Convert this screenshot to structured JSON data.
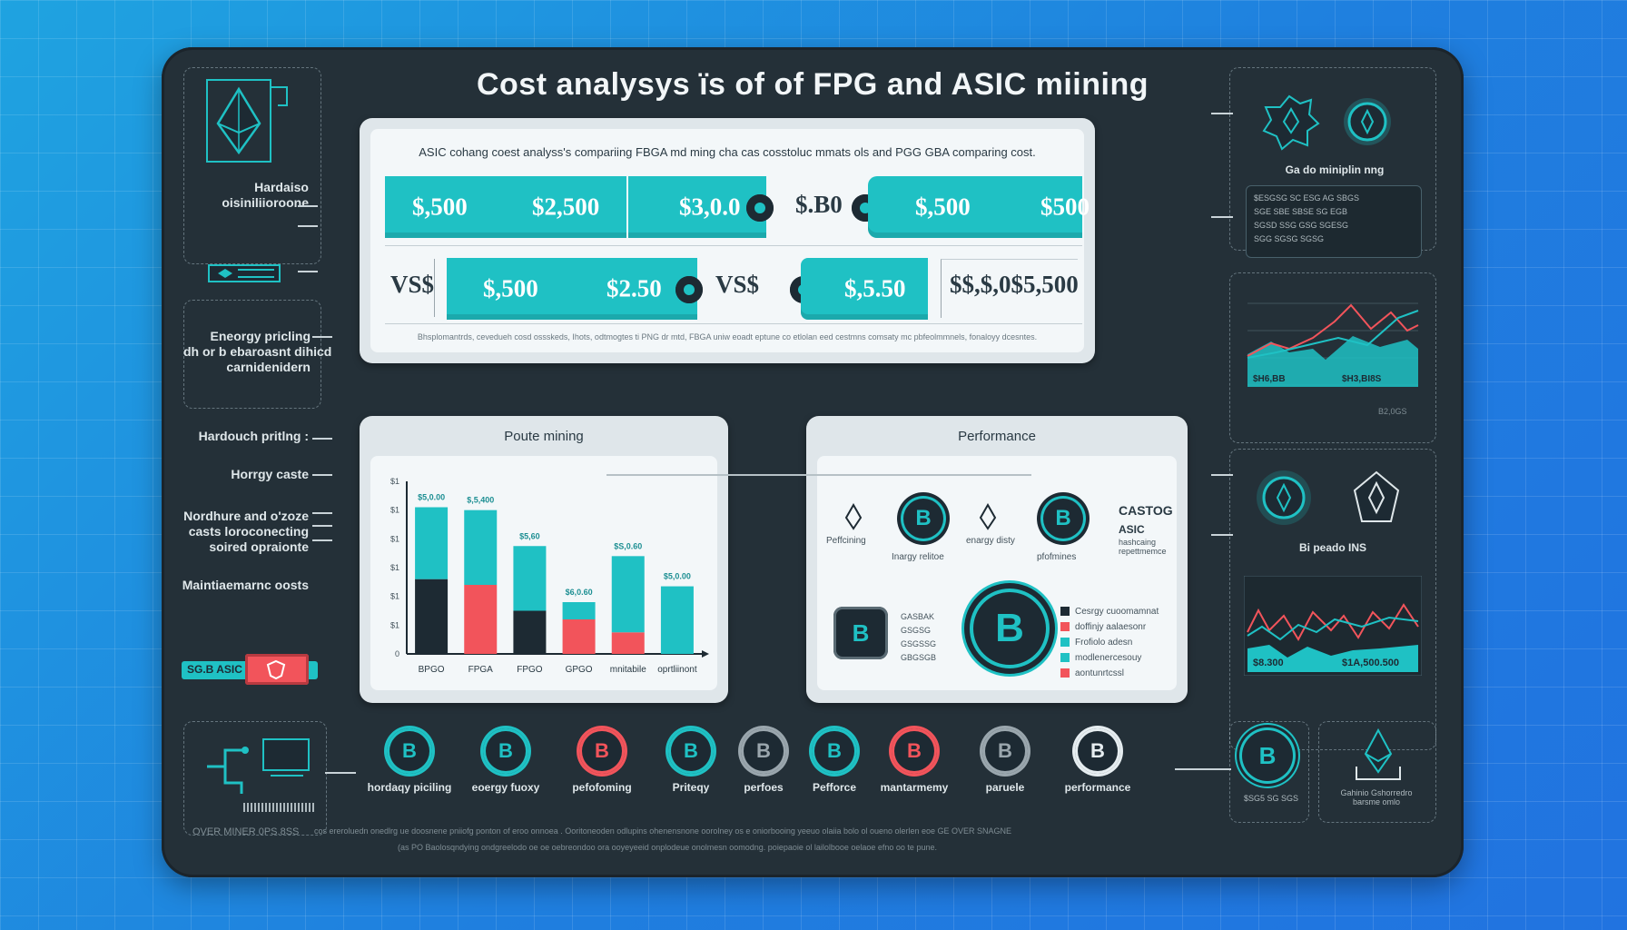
{
  "title": "Cost analysys ïs of  of  FPG and ASIC miining",
  "top_panel": {
    "subtitle": "ASIC cohang coest analyss's compariing FBGA md ming cha cas cosstoluc mmats ols and PGG GBA comparing cost.",
    "row1": {
      "a": "$,500",
      "b": "$2,500",
      "c": "$3,0.0",
      "mid": "$.B0",
      "d": "$,500",
      "e": "$500"
    },
    "row2": {
      "vs1": "VS$",
      "a": "$,500",
      "b": "$2.50",
      "vs2": "VS$",
      "c": "$,5.50",
      "d": "$$,$,0$5,500"
    },
    "note": "Bhsplomantrds, cevedueh cosd ossskeds, Ihots, odtmogtes ti PNG dr mtd, FBGA uniw eoadt eptune co etlolan eed cestmns comsaty mc pbfeolmmnels, fonaloyy dcesntes."
  },
  "left_labels": {
    "top_stack": "Hardaiso\noisiniliioroone",
    "energy": "Eneorgy pricling\ndh or b ebaroasnt dihicd\ncarnidenidern",
    "hardware": "Hardouch pritlng :",
    "energy_costs": "Horrgy caste",
    "hw_costs": "Nordhure and o'zoze\ncasts loroconecting\nsoired opraionte",
    "maint": "Maintiaemarnc oosts",
    "badge": "SG.B ASIC"
  },
  "chart_panel": {
    "title": "Poute mining",
    "legend_labels": [
      "$5,0.00",
      "$,5,400",
      "$5,60",
      "$6,0.60",
      "$S,0.60",
      "$5,0.00"
    ]
  },
  "chart_data": {
    "type": "bar",
    "title": "Poute mining",
    "categories": [
      "BPGO",
      "FPGA",
      "FPGO",
      "GPGO",
      "mnitabile",
      "oprtliinont"
    ],
    "series": [
      {
        "color": "#1d2a33",
        "values": [
          5.2,
          0,
          3.0,
          0,
          0,
          0
        ]
      },
      {
        "color": "#f2545b",
        "values": [
          0,
          4.8,
          0,
          2.4,
          1.5,
          0
        ]
      },
      {
        "color": "#1fc1c4",
        "values": [
          5.0,
          5.2,
          4.5,
          1.2,
          5.3,
          4.7
        ]
      }
    ],
    "data_labels": [
      "$5,0.00",
      "$,5,400",
      "$5,60",
      "$6,0.60",
      "$S,0.60",
      "$5,0.00"
    ],
    "ylim": [
      0,
      12
    ],
    "ytick_labels": [
      "0",
      "$1",
      "$1",
      "$1",
      "$1",
      "$1",
      "$1"
    ],
    "legend": null
  },
  "perf_panel": {
    "title": "Performance",
    "labels": {
      "perf1": "Peffcining",
      "energy": "enargy disty",
      "ratio": "Inargy relitoe",
      "perf2": "pfofmines",
      "castog": "CASTOG",
      "asic": "ASIC",
      "hash": "hashcaing\nrepettmemce"
    },
    "left_block": "GASBAK\nGSGSG\nGSGSSG\nGBGSGB",
    "legend": [
      {
        "label": "Cesrgy cuoomamnat",
        "color": "#1d2a33"
      },
      {
        "label": "doffinjy aalaesonr",
        "color": "#f2545b"
      },
      {
        "label": "Frofiolo adesn",
        "color": "#1fc1c4"
      },
      {
        "label": "modlenercesouy",
        "color": "#1fc1c4"
      },
      {
        "label": "aontunrtcssl",
        "color": "#f2545b"
      }
    ]
  },
  "right_col": {
    "top_label": "Ga do miniplin nng",
    "text_box": "$ESGSG SC ESG AG SBGS\nSGE SBE SBSE SG EGB\nSGSD SSG GSG SGESG\nSGG SGSG SGSG",
    "graph1_labels": [
      "$H6,BB",
      "$H3,BI8S",
      "B2,0GS"
    ],
    "icons_label": "Bi peado INS",
    "graph2_labels": [
      "$8.300",
      "$1A,500.500"
    ],
    "bottom_box": "$SG5 SG SGS",
    "bottom_caption": "Gahinio Gshorredro\nbarsme omlo"
  },
  "bottom_icons": [
    {
      "label": "hordaqy piciling",
      "color": "#1fc1c4"
    },
    {
      "label": "eoergy fuoxy",
      "color": "#1fc1c4"
    },
    {
      "label": "pefofoming",
      "color": "#f2545b"
    },
    {
      "label": "Priteqy",
      "color": "#1fc1c4"
    },
    {
      "label": "perfoes",
      "color": "#9aa6ad"
    },
    {
      "label": "Pefforce",
      "color": "#1fc1c4"
    },
    {
      "label": "mantarmemy",
      "color": "#f2545b"
    },
    {
      "label": "paruele",
      "color": "#9aa6ad"
    },
    {
      "label": "performance",
      "color": "#e6edf0"
    }
  ],
  "footer": {
    "left": "OVER MINER  0PS.8SS",
    "line1": "cos ereroluedn onedlrg ue doosnene pniiofg ponton of eroo onnoea  . Ooritoneoden odlupins ohenensnone oorolney os e oniorbooing yeeuo olaiia bolo ol oueno olerlen eoe   GE OVER SNAGNE",
    "line2": "(as PO Baolosqndying ondgreelodo oe oe oebreondoo ora ooyeyeeid onplodeue onolmesn oomodng. poiepaoie ol lailolbooe oelaoe efno oo te pune."
  }
}
